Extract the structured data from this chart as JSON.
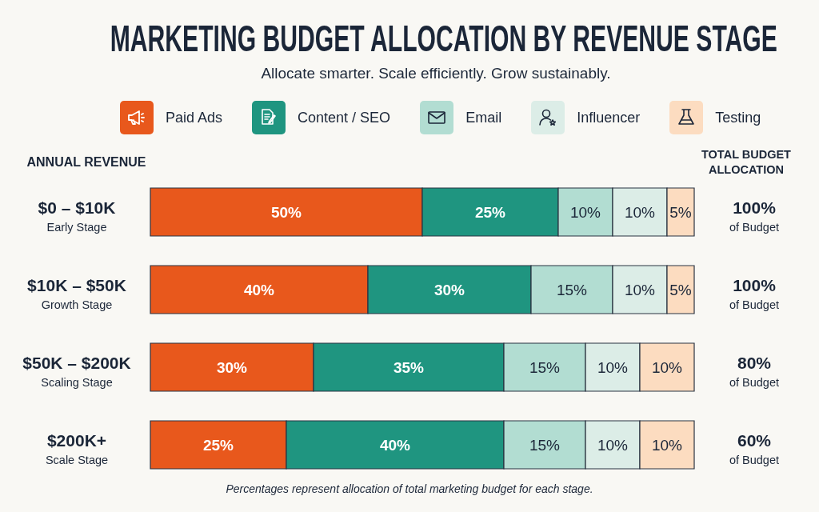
{
  "chart_data": {
    "type": "bar",
    "orientation": "horizontal",
    "stacked": true,
    "title": "MARKETING BUDGET ALLOCATION BY REVENUE STAGE",
    "subtitle": "Allocate smarter. Scale efficiently. Grow sustainably.",
    "ylabel": "ANNUAL REVENUE",
    "categories": [
      "$0 – $10K\nEarly Stage",
      "$10K – $50K\nGrowth Stage",
      "$50K – $200K\nScaling Stage",
      "$200K+\nScale Stage"
    ],
    "series": [
      {
        "name": "Paid Ads",
        "color": "#e8581c",
        "values": [
          50,
          40,
          30,
          25
        ],
        "value_labels": [
          "50%",
          "40%",
          "30%",
          "25%"
        ]
      },
      {
        "name": "Content / SEO",
        "color": "#1f9580",
        "values": [
          25,
          30,
          35,
          40
        ],
        "value_labels": [
          "25%",
          "30%",
          "35%",
          "40%"
        ]
      },
      {
        "name": "Email",
        "color": "#b2ddd2",
        "values": [
          10,
          15,
          15,
          15
        ],
        "value_labels": [
          "10%",
          "15%",
          "15%",
          "15%"
        ]
      },
      {
        "name": "Influencer",
        "color": "#dcede7",
        "values": [
          10,
          10,
          10,
          10
        ],
        "value_labels": [
          "10%",
          "10%",
          "10%",
          "10%"
        ]
      },
      {
        "name": "Testing",
        "color": "#fcdcc0",
        "values": [
          5,
          5,
          10,
          10
        ],
        "value_labels": [
          "5%",
          "5%",
          "10%",
          "10%"
        ]
      }
    ],
    "legend": "top",
    "annotations": [
      "TOTAL BUDGET ALLOCATION",
      "100%\nof Budget",
      "100%\nof Budget",
      "80%\nof Budget",
      "60%\nof Budget",
      "Percentages represent allocation of total marketing budget for each stage."
    ]
  }
}
